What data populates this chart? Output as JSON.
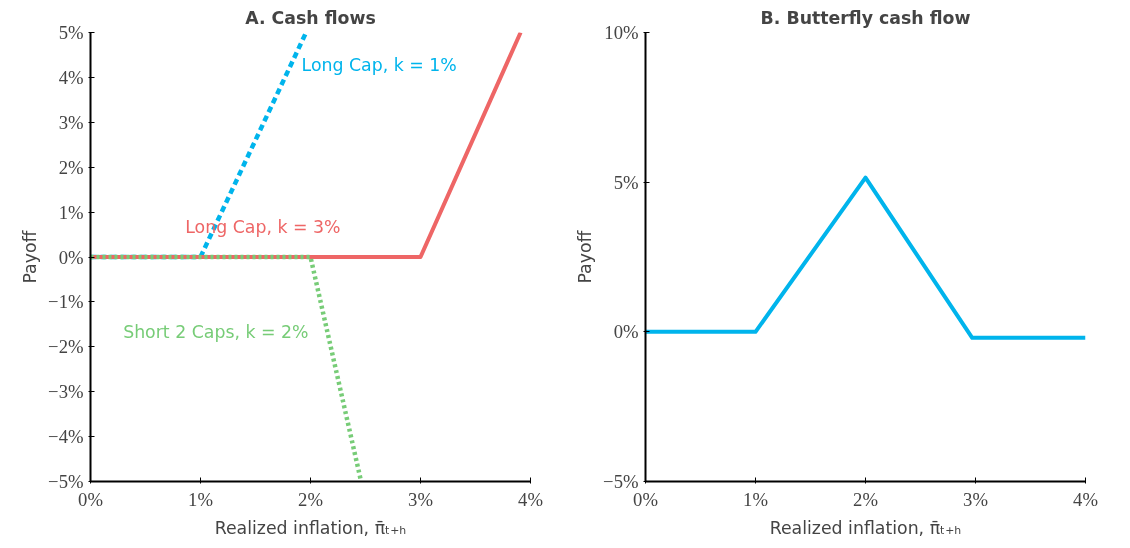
{
  "chart_data": [
    {
      "type": "line",
      "title": "A. Cash flows",
      "xlabel": "Realized inflation, π̄ₜ₊ₕ",
      "ylabel": "Payoff",
      "xlim": [
        0,
        4
      ],
      "ylim": [
        -5,
        5
      ],
      "xticks": [
        {
          "value": 0,
          "label": "0%"
        },
        {
          "value": 1,
          "label": "1%"
        },
        {
          "value": 2,
          "label": "2%"
        },
        {
          "value": 3,
          "label": "3%"
        },
        {
          "value": 4,
          "label": "4%"
        }
      ],
      "yticks": [
        {
          "value": -5,
          "label": "−5%"
        },
        {
          "value": -4,
          "label": "−4%"
        },
        {
          "value": -3,
          "label": "−3%"
        },
        {
          "value": -2,
          "label": "−2%"
        },
        {
          "value": -1,
          "label": "−1%"
        },
        {
          "value": 0,
          "label": "0%"
        },
        {
          "value": 1,
          "label": "1%"
        },
        {
          "value": 2,
          "label": "2%"
        },
        {
          "value": 3,
          "label": "3%"
        },
        {
          "value": 4,
          "label": "4%"
        },
        {
          "value": 5,
          "label": "5%"
        }
      ],
      "grid": false,
      "series": [
        {
          "name": "Long Cap, k = 1%",
          "color": "#00b4ec",
          "line_style": "dashed",
          "x": [
            0,
            1,
            1.96
          ],
          "values": [
            0,
            0,
            5
          ]
        },
        {
          "name": "Long Cap, k = 3%",
          "color": "#ee6666",
          "line_style": "solid",
          "x": [
            0,
            3,
            3.91
          ],
          "values": [
            0,
            0,
            5
          ]
        },
        {
          "name": "Short 2 Caps, k = 2%",
          "color": "#77cc77",
          "line_style": "dotted",
          "x": [
            0,
            2,
            2.46
          ],
          "values": [
            0,
            0,
            -5
          ]
        }
      ]
    },
    {
      "type": "line",
      "title": "B. Butterfly cash flow",
      "xlabel": "Realized inflation, π̄ₜ₊ₕ",
      "ylabel": "Payoff",
      "xlim": [
        0,
        4
      ],
      "ylim": [
        -5,
        10
      ],
      "xticks": [
        {
          "value": 0,
          "label": "0%"
        },
        {
          "value": 1,
          "label": "1%"
        },
        {
          "value": 2,
          "label": "2%"
        },
        {
          "value": 3,
          "label": "3%"
        },
        {
          "value": 4,
          "label": "4%"
        }
      ],
      "yticks": [
        {
          "value": -5,
          "label": "−5%"
        },
        {
          "value": 0,
          "label": "0%"
        },
        {
          "value": 5,
          "label": "5%"
        },
        {
          "value": 10,
          "label": "10%"
        }
      ],
      "grid": false,
      "series": [
        {
          "color": "#00b4ec",
          "line_style": "solid",
          "x": [
            0,
            1,
            2,
            2.97,
            4
          ],
          "values": [
            0,
            0,
            5.15,
            -0.2,
            -0.2
          ]
        }
      ]
    }
  ]
}
